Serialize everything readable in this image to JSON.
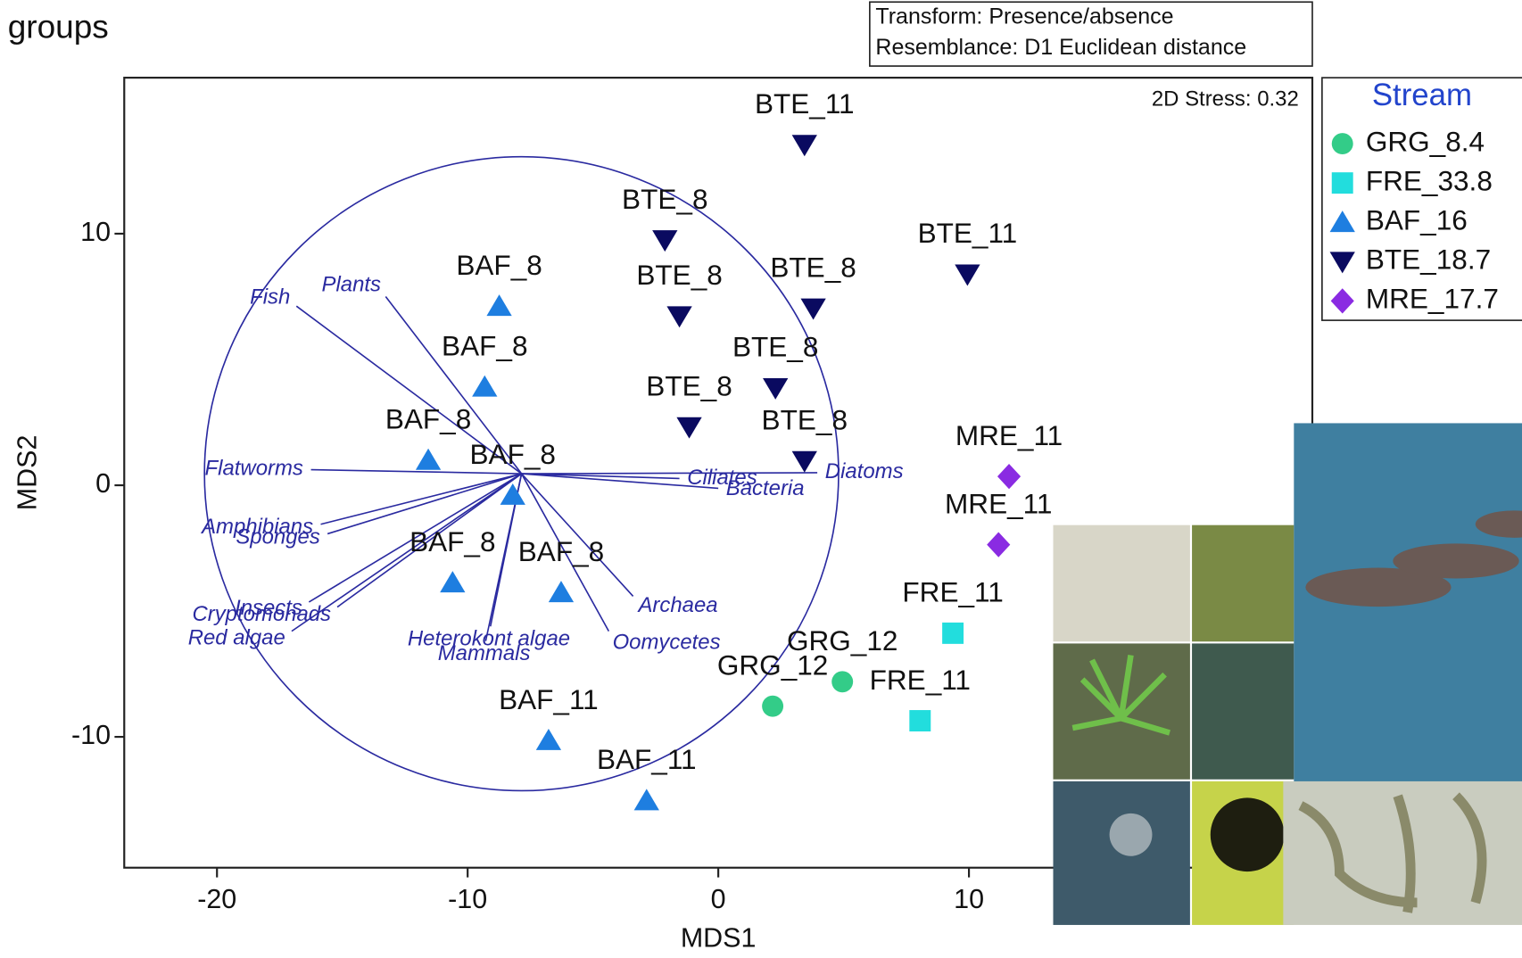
{
  "header": {
    "title": "groups"
  },
  "chart_data": {
    "type": "scatter",
    "notes": [
      "Transform: Presence/absence",
      "Resemblance: D1 Euclidean distance"
    ],
    "stress": "2D Stress: 0.32",
    "xlabel": "MDS1",
    "ylabel": "MDS2",
    "xlim": [
      -23.7,
      23.7
    ],
    "ylim": [
      -15.2,
      16.2
    ],
    "xticks": [
      -20,
      -10,
      0,
      10
    ],
    "yticks": [
      -10,
      0,
      10
    ],
    "legend_title": "Stream",
    "legend_position": "right",
    "series": [
      {
        "name": "GRG_8.4",
        "color": "#33cc88",
        "marker": "circle",
        "x": [
          2.17,
          4.95
        ],
        "y": [
          -8.78,
          -7.81
        ],
        "labels": [
          "GRG_12",
          "GRG_12"
        ]
      },
      {
        "name": "FRE_33.8",
        "color": "#22dddd",
        "marker": "square",
        "x": [
          9.36,
          8.05
        ],
        "y": [
          -5.88,
          -9.36
        ],
        "labels": [
          "FRE_11",
          "FRE_11"
        ]
      },
      {
        "name": "BAF_16",
        "color": "#1e7ee0",
        "marker": "triangle-up",
        "x": [
          -8.74,
          -9.32,
          -11.57,
          -8.2,
          -10.6,
          -6.27,
          -6.77,
          -2.86
        ],
        "y": [
          7.12,
          3.91,
          1.0,
          -0.39,
          -3.87,
          -4.26,
          -10.14,
          -12.53
        ],
        "labels": [
          "BAF_8",
          "BAF_8",
          "BAF_8",
          "BAF_8",
          "BAF_8",
          "BAF_8",
          "BAF_11",
          "BAF_11"
        ]
      },
      {
        "name": "BTE_18.7",
        "color": "#0a0a60",
        "marker": "triangle-down",
        "x": [
          3.44,
          -2.13,
          -1.55,
          3.79,
          9.94,
          2.28,
          -1.16,
          3.44
        ],
        "y": [
          13.54,
          9.75,
          6.73,
          7.04,
          8.39,
          3.87,
          2.32,
          0.97
        ],
        "labels": [
          "BTE_11",
          "BTE_8",
          "BTE_8",
          "BTE_8",
          "BTE_11",
          "BTE_8",
          "BTE_8",
          "BTE_8"
        ]
      },
      {
        "name": "MRE_17.7",
        "color": "#8a2be2",
        "marker": "diamond",
        "x": [
          11.6,
          11.18
        ],
        "y": [
          0.35,
          -2.36
        ],
        "labels": [
          "MRE_11",
          "MRE_11"
        ]
      }
    ],
    "vector_color": "#2a2aa0",
    "vector_origin": [
      -7.85,
      0.46
    ],
    "circle_radius": 12.65,
    "vectors": [
      {
        "label": "Fish",
        "x": -16.83,
        "y": 7.12
      },
      {
        "label": "Plants",
        "x": -13.27,
        "y": 7.5
      },
      {
        "label": "Flatworms",
        "x": -16.25,
        "y": 0.62
      },
      {
        "label": "Diatoms",
        "x": 3.95,
        "y": 0.5
      },
      {
        "label": "Ciliates",
        "x": -1.55,
        "y": 0.27
      },
      {
        "label": "Bacteria",
        "x": 0.0,
        "y": -0.12
      },
      {
        "label": "Amphibians",
        "x": -15.86,
        "y": -1.55
      },
      {
        "label": "Sponges",
        "x": -15.59,
        "y": -1.93
      },
      {
        "label": "Insects",
        "x": -16.33,
        "y": -4.64
      },
      {
        "label": "Red algae",
        "x": -17.02,
        "y": -5.8
      },
      {
        "label": "Heterokont algae",
        "x": -9.09,
        "y": -5.61
      },
      {
        "label": "Cryptomonads",
        "x": -15.2,
        "y": -4.84
      },
      {
        "label": "Mammals",
        "x": -9.28,
        "y": -6.19
      },
      {
        "label": "Archaea",
        "x": -3.4,
        "y": -4.41
      },
      {
        "label": "Oomycetes",
        "x": -4.37,
        "y": -5.8
      }
    ]
  }
}
